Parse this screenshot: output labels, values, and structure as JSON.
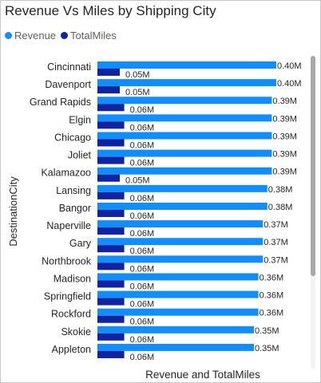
{
  "visual": {
    "title": "Revenue Vs Miles by Shipping City"
  },
  "colors": {
    "revenue": "#118dff",
    "total_miles": "#12239e",
    "category_text": "#252423",
    "value_text": "#252423",
    "axis_title": "#252423"
  },
  "chart_data": {
    "type": "bar",
    "orientation": "horizontal",
    "title": "Revenue Vs Miles by Shipping City",
    "xlabel": "Revenue and TotalMiles",
    "ylabel": "DestinationCity",
    "legend_position": "top-left",
    "grid": false,
    "unit_suffix": "M",
    "xlim": [
      0,
      0.4
    ],
    "categories": [
      "Cincinnati",
      "Davenport",
      "Grand Rapids",
      "Elgin",
      "Chicago",
      "Joliet",
      "Kalamazoo",
      "Lansing",
      "Bangor",
      "Naperville",
      "Gary",
      "Northbrook",
      "Madison",
      "Springfield",
      "Rockford",
      "Skokie",
      "Appleton"
    ],
    "series": [
      {
        "name": "Revenue",
        "values": [
          0.4,
          0.4,
          0.39,
          0.39,
          0.39,
          0.39,
          0.39,
          0.38,
          0.38,
          0.37,
          0.37,
          0.37,
          0.36,
          0.36,
          0.36,
          0.35,
          0.35
        ],
        "labels": [
          "0.40M",
          "0.40M",
          "0.39M",
          "0.39M",
          "0.39M",
          "0.39M",
          "0.39M",
          "0.38M",
          "0.38M",
          "0.37M",
          "0.37M",
          "0.37M",
          "0.36M",
          "0.36M",
          "0.36M",
          "0.35M",
          "0.35M"
        ]
      },
      {
        "name": "TotalMiles",
        "values": [
          0.05,
          0.05,
          0.06,
          0.06,
          0.06,
          0.06,
          0.05,
          0.06,
          0.06,
          0.06,
          0.06,
          0.06,
          0.06,
          0.06,
          0.06,
          0.06,
          0.06
        ],
        "labels": [
          "0.05M",
          "0.05M",
          "0.06M",
          "0.06M",
          "0.06M",
          "0.06M",
          "0.05M",
          "0.06M",
          "0.06M",
          "0.06M",
          "0.06M",
          "0.06M",
          "0.06M",
          "0.06M",
          "0.06M",
          "0.06M",
          "0.06M"
        ]
      }
    ]
  }
}
